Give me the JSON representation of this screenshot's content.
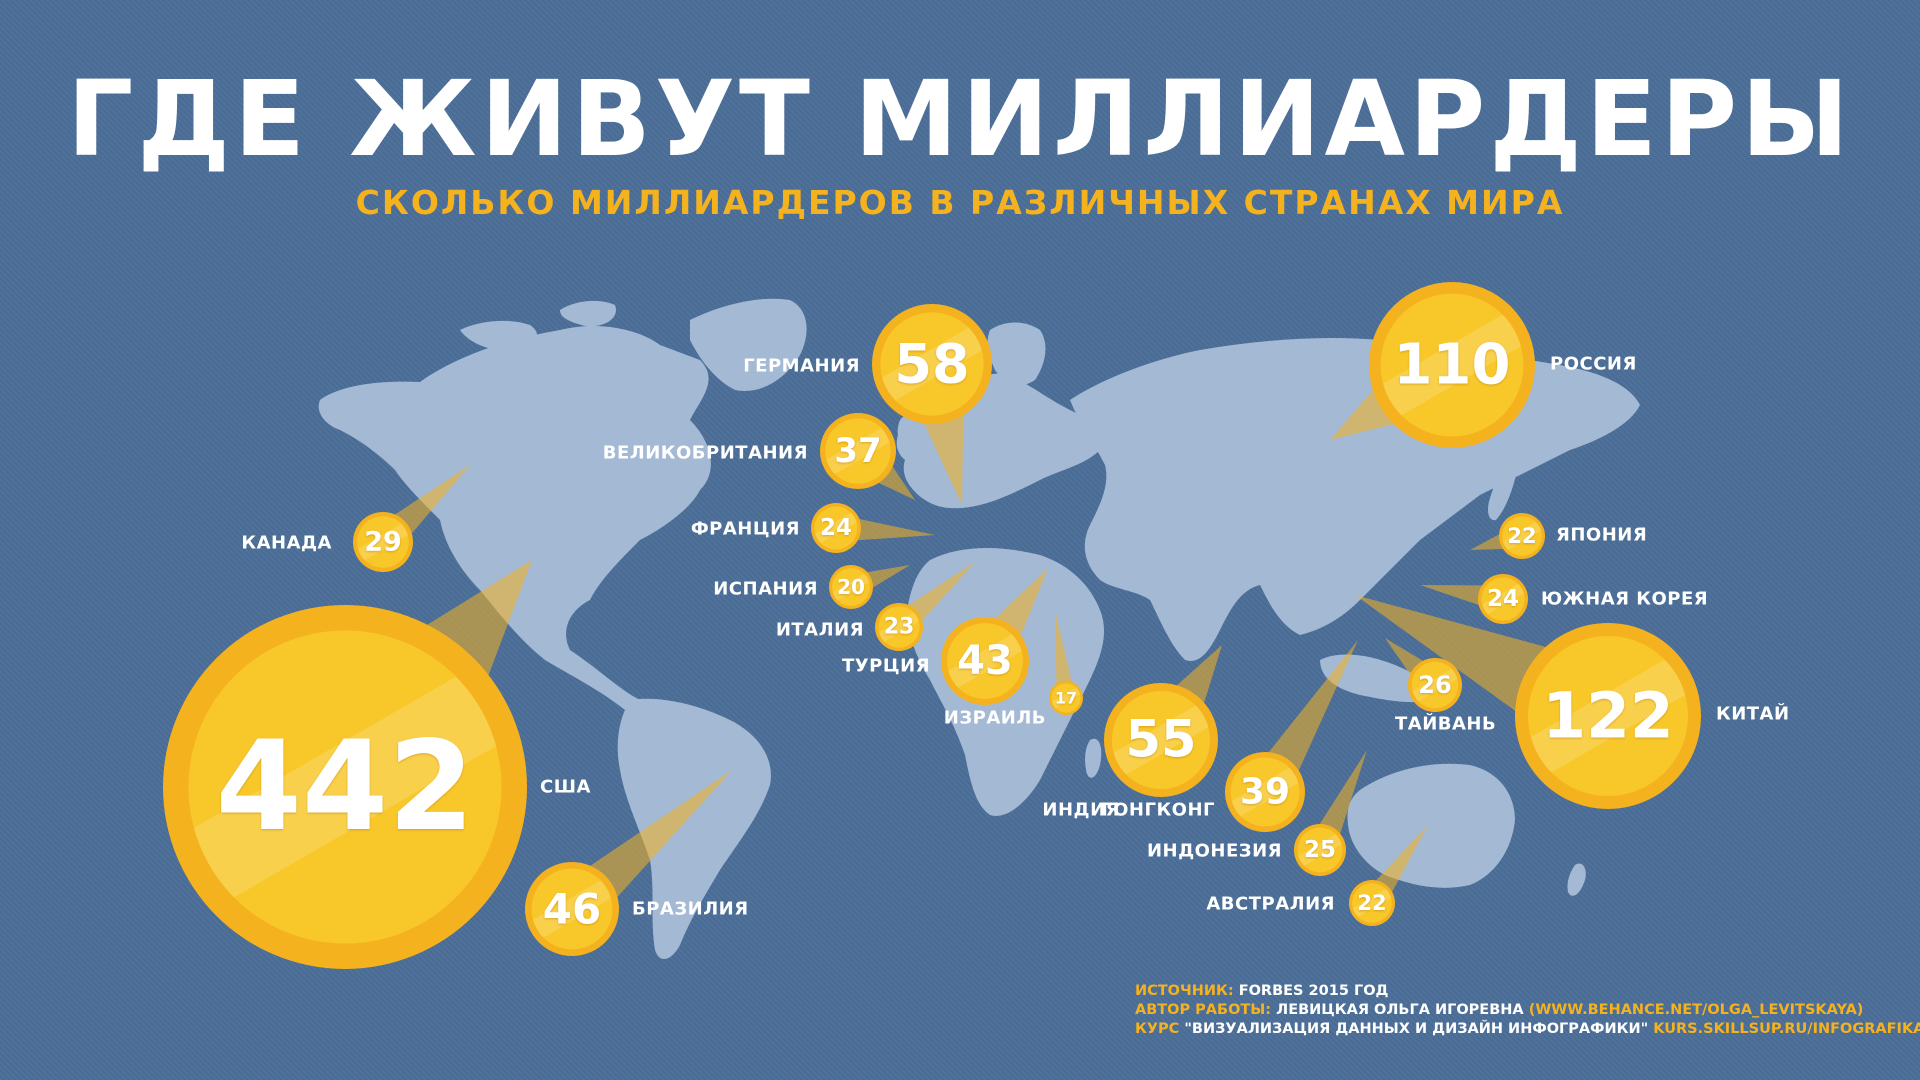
{
  "title": "ГДЕ ЖИВУТ МИЛЛИАРДЕРЫ",
  "subtitle": "СКОЛЬКО МИЛЛИАРДЕРОВ В РАЗЛИЧНЫХ СТРАНАХ МИРА",
  "colors": {
    "background": "#4b6e98",
    "land": "#a3b9d4",
    "bubble_outer": "#f5b21f",
    "bubble_inner": "#f8c82a",
    "accent_text": "#f5b21f"
  },
  "countries": [
    {
      "id": "usa",
      "name": "США",
      "value": 442
    },
    {
      "id": "china",
      "name": "КИТАЙ",
      "value": 122
    },
    {
      "id": "russia",
      "name": "РОССИЯ",
      "value": 110
    },
    {
      "id": "germany",
      "name": "ГЕРМАНИЯ",
      "value": 58
    },
    {
      "id": "india",
      "name": "ИНДИЯ",
      "value": 55
    },
    {
      "id": "brazil",
      "name": "БРАЗИЛИЯ",
      "value": 46
    },
    {
      "id": "turkey",
      "name": "ТУРЦИЯ",
      "value": 43
    },
    {
      "id": "hongkong",
      "name": "ГОНГКОНГ",
      "value": 39
    },
    {
      "id": "uk",
      "name": "ВЕЛИКОБРИТАНИЯ",
      "value": 37
    },
    {
      "id": "canada",
      "name": "КАНАДА",
      "value": 29
    },
    {
      "id": "taiwan",
      "name": "ТАЙВАНЬ",
      "value": 26
    },
    {
      "id": "indonesia",
      "name": "ИНДОНЕЗИЯ",
      "value": 25
    },
    {
      "id": "france",
      "name": "ФРАНЦИЯ",
      "value": 24
    },
    {
      "id": "southkorea",
      "name": "ЮЖНАЯ КОРЕЯ",
      "value": 24
    },
    {
      "id": "italy",
      "name": "ИТАЛИЯ",
      "value": 23
    },
    {
      "id": "japan",
      "name": "ЯПОНИЯ",
      "value": 22
    },
    {
      "id": "australia",
      "name": "АВСТРАЛИЯ",
      "value": 22
    },
    {
      "id": "spain",
      "name": "ИСПАНИЯ",
      "value": 20
    },
    {
      "id": "israel",
      "name": "ИЗРАИЛЬ",
      "value": 17
    }
  ],
  "footer": {
    "source_label": "ИСТОЧНИК:",
    "source_value": "FORBES 2015 ГОД",
    "author_label": "АВТОР РАБОТЫ:",
    "author_value": "ЛЕВИЦКАЯ ОЛЬГА ИГОРЕВНА",
    "author_link": "(WWW.BEHANCE.NET/OLGA_LEVITSKAYA)",
    "course_label": "КУРС",
    "course_value": "\"ВИЗУАЛИЗАЦИЯ ДАННЫХ И ДИЗАЙН ИНФОГРАФИКИ\"",
    "course_link": "KURS.SKILLSUP.RU/INFOGRAFIKA"
  }
}
